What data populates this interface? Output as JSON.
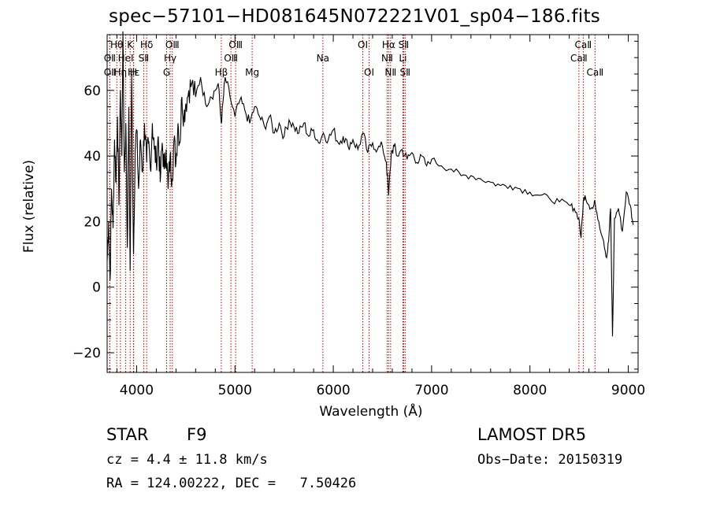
{
  "header": {
    "title": "spec−57101−HD081645N072221V01_sp04−186.fits"
  },
  "info": {
    "object_class": "STAR",
    "subclass": "F9",
    "survey": "LAMOST DR5",
    "redshift": "cz = 4.4 ± 11.8 km/s",
    "obs_date": "Obs−Date: 20150319",
    "radec": "RA = 124.00222, DEC =   7.50426"
  },
  "colors": {
    "spectrum": "#000000",
    "line_marker": "#c00000",
    "axis": "#000000"
  },
  "chart_data": {
    "type": "line",
    "xlabel": "Wavelength (Å)",
    "ylabel": "Flux (relative)",
    "xlim": [
      3700,
      9100
    ],
    "ylim": [
      -26,
      77
    ],
    "x_ticks": [
      4000,
      5000,
      6000,
      7000,
      8000,
      9000
    ],
    "y_ticks": [
      -20,
      0,
      20,
      40,
      60
    ],
    "grid": false,
    "line_markers": [
      {
        "label": "OⅡ",
        "x": 3727,
        "row": 2
      },
      {
        "label": "Hθ",
        "x": 3798,
        "row": 0
      },
      {
        "label": "OⅡ",
        "x": 3727,
        "row": 1
      },
      {
        "label": "Hη",
        "x": 3835,
        "row": 2
      },
      {
        "label": "HeⅠ",
        "x": 3889,
        "row": 1
      },
      {
        "label": "K",
        "x": 3934,
        "row": 0
      },
      {
        "label": "Hε",
        "x": 3970,
        "row": 2
      },
      {
        "label": "H",
        "x": 3968,
        "row": 2
      },
      {
        "label": "SⅡ",
        "x": 4072,
        "row": 1
      },
      {
        "label": "Hδ",
        "x": 4102,
        "row": 0
      },
      {
        "label": "G",
        "x": 4305,
        "row": 2
      },
      {
        "label": "Hγ",
        "x": 4341,
        "row": 1
      },
      {
        "label": "OⅢ",
        "x": 4363,
        "row": 0
      },
      {
        "label": "Hβ",
        "x": 4861,
        "row": 2
      },
      {
        "label": "OⅢ",
        "x": 4959,
        "row": 1
      },
      {
        "label": "OⅢ",
        "x": 5007,
        "row": 0
      },
      {
        "label": "Mg",
        "x": 5175,
        "row": 2
      },
      {
        "label": "Na",
        "x": 5894,
        "row": 1
      },
      {
        "label": "OⅠ",
        "x": 6300,
        "row": 0
      },
      {
        "label": "OⅠ",
        "x": 6364,
        "row": 2
      },
      {
        "label": "NⅡ",
        "x": 6548,
        "row": 1
      },
      {
        "label": "Hα",
        "x": 6563,
        "row": 0
      },
      {
        "label": "NⅡ",
        "x": 6583,
        "row": 2
      },
      {
        "label": "Li",
        "x": 6708,
        "row": 1
      },
      {
        "label": "SⅡ",
        "x": 6716,
        "row": 0
      },
      {
        "label": "SⅡ",
        "x": 6731,
        "row": 2
      },
      {
        "label": "CaⅡ",
        "x": 8498,
        "row": 1
      },
      {
        "label": "CaⅡ",
        "x": 8542,
        "row": 0
      },
      {
        "label": "CaⅡ",
        "x": 8662,
        "row": 2
      }
    ],
    "series": [
      {
        "x": [
          3700,
          3715,
          3730,
          3745,
          3760,
          3775,
          3790,
          3805,
          3820,
          3835,
          3850,
          3860,
          3875,
          3890,
          3905,
          3920,
          3934,
          3950,
          3968,
          3985,
          4000,
          4020,
          4040,
          4060,
          4080,
          4102,
          4120,
          4140,
          4160,
          4180,
          4200,
          4220,
          4240,
          4260,
          4280,
          4300,
          4320,
          4340,
          4360,
          4380,
          4400,
          4420,
          4440,
          4460,
          4480,
          4500,
          4530,
          4560,
          4600,
          4650,
          4700,
          4750,
          4800,
          4830,
          4861,
          4880,
          4900,
          4950,
          5000,
          5050,
          5100,
          5150,
          5200,
          5250,
          5300,
          5350,
          5400,
          5450,
          5500,
          5550,
          5600,
          5650,
          5700,
          5750,
          5800,
          5850,
          5900,
          5950,
          6000,
          6050,
          6100,
          6150,
          6200,
          6250,
          6300,
          6350,
          6400,
          6450,
          6500,
          6540,
          6563,
          6590,
          6620,
          6650,
          6700,
          6750,
          6800,
          6850,
          6900,
          6950,
          7000,
          7100,
          7200,
          7300,
          7400,
          7500,
          7600,
          7700,
          7800,
          7900,
          8000,
          8100,
          8200,
          8300,
          8400,
          8450,
          8498,
          8520,
          8542,
          8560,
          8600,
          8640,
          8662,
          8700,
          8750,
          8780,
          8800,
          8820,
          8840,
          8860,
          8900,
          8940,
          8980,
          9020,
          9050
        ],
        "y": [
          8,
          20,
          2,
          30,
          18,
          45,
          32,
          52,
          25,
          60,
          40,
          78,
          35,
          50,
          12,
          55,
          5,
          65,
          10,
          42,
          48,
          30,
          45,
          35,
          50,
          38,
          44,
          36,
          50,
          42,
          38,
          46,
          32,
          44,
          36,
          42,
          30,
          40,
          33,
          45,
          38,
          50,
          44,
          58,
          52,
          56,
          60,
          62,
          58,
          64,
          56,
          58,
          60,
          62,
          50,
          57,
          64,
          58,
          52,
          57,
          54,
          50,
          55,
          52,
          49,
          52,
          47,
          50,
          46,
          51,
          49,
          47,
          50,
          46,
          48,
          44,
          47,
          45,
          48,
          44,
          46,
          43,
          45,
          42,
          47,
          41,
          44,
          42,
          43,
          38,
          28,
          41,
          43,
          40,
          42,
          39,
          41,
          38,
          40,
          37,
          39,
          37,
          36,
          34,
          34,
          33,
          32,
          31,
          31,
          30,
          29,
          28,
          27,
          26,
          25,
          24,
          21,
          15,
          26,
          28,
          25,
          24,
          26,
          20,
          14,
          9,
          14,
          24,
          -15,
          21,
          24,
          17,
          29,
          25,
          19
        ]
      }
    ]
  }
}
